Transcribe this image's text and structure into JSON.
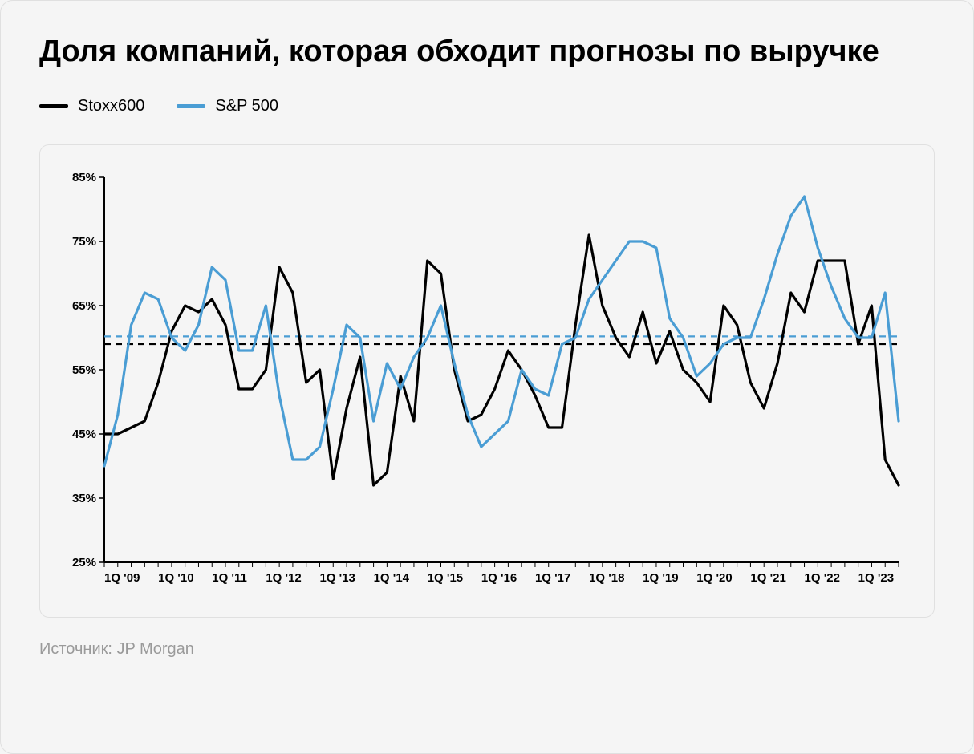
{
  "title": "Доля компаний, которая обходит прогнозы по выручке",
  "source": "Источник: JP Morgan",
  "legend": {
    "series1": {
      "label": "Stoxx600",
      "color": "#000000"
    },
    "series2": {
      "label": "S&P 500",
      "color": "#4a9dd4"
    }
  },
  "chart": {
    "type": "line",
    "background_color": "#f5f5f5",
    "border_color": "#e0e0e0",
    "axis_color": "#000000",
    "tick_font_size": 15,
    "tick_color": "#000000",
    "line_width": 3.2,
    "ylim": [
      25,
      85
    ],
    "ytick_step": 10,
    "ytick_suffix": "%",
    "xtick_labels": [
      "1Q '09",
      "1Q '10",
      "1Q '11",
      "1Q '12",
      "1Q '13",
      "1Q '14",
      "1Q '15",
      "1Q '16",
      "1Q '17",
      "1Q '18",
      "1Q '19",
      "1Q '20",
      "1Q '21",
      "1Q '22",
      "1Q '23"
    ],
    "xtick_positions": [
      0,
      4,
      8,
      12,
      16,
      20,
      24,
      28,
      32,
      36,
      40,
      44,
      48,
      52,
      56
    ],
    "n_points": 60,
    "reference_lines": [
      {
        "y": 60.2,
        "color": "#4a9dd4",
        "dash": "8 6",
        "width": 2.2
      },
      {
        "y": 59.0,
        "color": "#000000",
        "dash": "8 6",
        "width": 2.2
      }
    ],
    "series": [
      {
        "name": "Stoxx600",
        "color": "#000000",
        "values": [
          45,
          45,
          46,
          47,
          53,
          61,
          65,
          64,
          66,
          62,
          52,
          52,
          55,
          71,
          67,
          53,
          55,
          38,
          49,
          57,
          37,
          39,
          54,
          47,
          72,
          70,
          55,
          47,
          48,
          52,
          58,
          55,
          51,
          46,
          46,
          62,
          76,
          65,
          60,
          57,
          64,
          56,
          61,
          55,
          53,
          50,
          65,
          62,
          53,
          49,
          56,
          67,
          64,
          72,
          72,
          72,
          59,
          65,
          41,
          37
        ]
      },
      {
        "name": "S&P 500",
        "color": "#4a9dd4",
        "values": [
          40,
          48,
          62,
          67,
          66,
          60,
          58,
          62,
          71,
          69,
          58,
          58,
          65,
          51,
          41,
          41,
          43,
          52,
          62,
          60,
          47,
          56,
          52,
          57,
          60,
          65,
          56,
          48,
          43,
          45,
          47,
          55,
          52,
          51,
          59,
          60,
          66,
          69,
          72,
          75,
          75,
          74,
          63,
          60,
          54,
          56,
          59,
          60,
          60,
          66,
          73,
          79,
          82,
          74,
          68,
          63,
          60,
          60,
          67,
          47
        ]
      }
    ]
  }
}
